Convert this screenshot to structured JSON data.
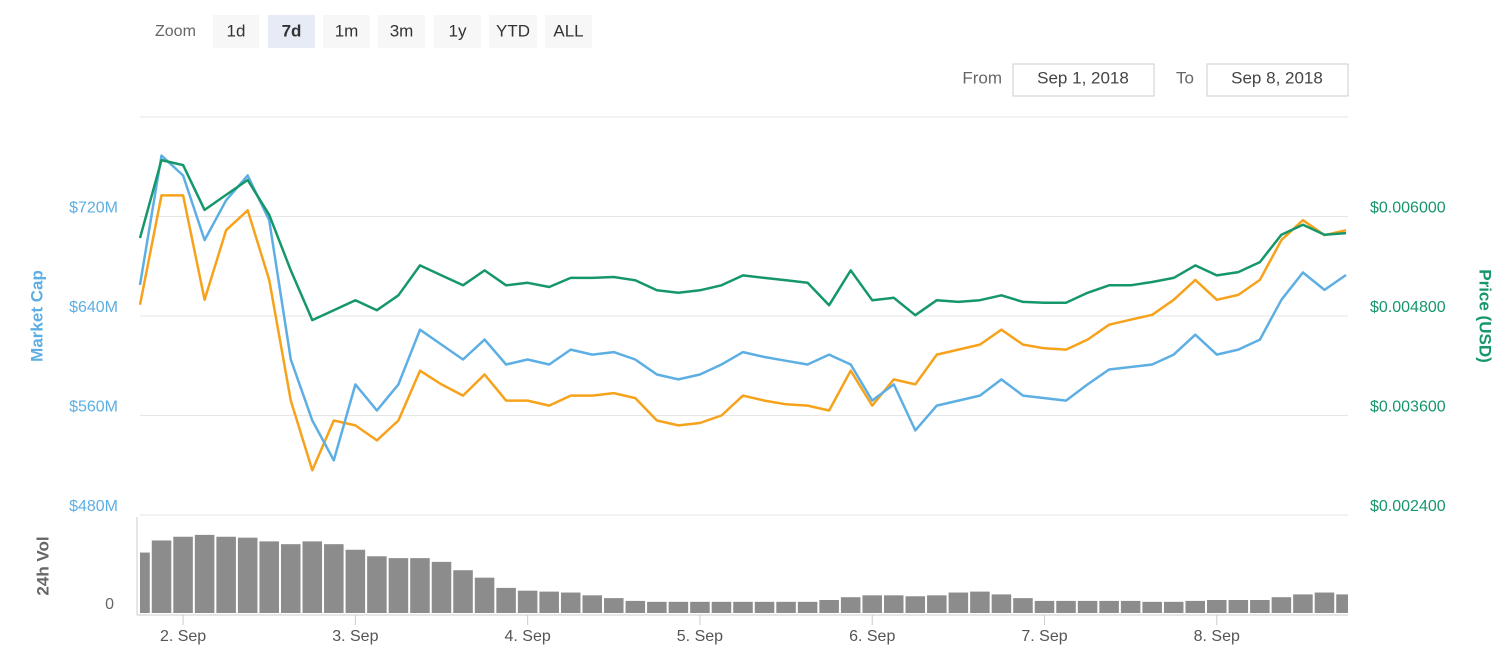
{
  "ui": {
    "zoom": {
      "label": "Zoom",
      "buttons": [
        "1d",
        "7d",
        "1m",
        "3m",
        "1y",
        "YTD",
        "ALL"
      ],
      "selected": 1
    },
    "range": {
      "from_label": "From",
      "from": "Sep 1, 2018",
      "to_label": "To",
      "to": "Sep 8, 2018"
    }
  },
  "chart_data": [
    {
      "type": "line",
      "ylabel": "Market Cap",
      "y2label": "Price (USD)",
      "grid": true,
      "x": [
        1.75,
        1.875,
        2,
        2.125,
        2.25,
        2.375,
        2.5,
        2.625,
        2.75,
        2.875,
        3,
        3.125,
        3.25,
        3.375,
        3.5,
        3.625,
        3.75,
        3.875,
        4,
        4.125,
        4.25,
        4.375,
        4.5,
        4.625,
        4.75,
        4.875,
        5,
        5.125,
        5.25,
        5.375,
        5.5,
        5.625,
        5.75,
        5.875,
        6,
        6.125,
        6.25,
        6.375,
        6.5,
        6.625,
        6.75,
        6.875,
        7,
        7.125,
        7.25,
        7.375,
        7.5,
        7.625,
        7.75,
        7.875,
        8,
        8.125,
        8.25,
        8.375,
        8.5,
        8.625,
        8.75
      ],
      "xlim": [
        1.75,
        8.75
      ],
      "ylim": [
        480,
        800
      ],
      "yticks": [
        {
          "value": 480,
          "label": "$480M"
        },
        {
          "value": 560,
          "label": "$560M"
        },
        {
          "value": 640,
          "label": "$640M"
        },
        {
          "value": 720,
          "label": "$720M"
        }
      ],
      "y2lim": [
        0.0024,
        0.0072
      ],
      "y2ticks": [
        {
          "value": 0.0024,
          "label": "$0.002400"
        },
        {
          "value": 0.0036,
          "label": "$0.003600"
        },
        {
          "value": 0.0048,
          "label": "$0.004800"
        },
        {
          "value": 0.006,
          "label": "$0.006000"
        }
      ],
      "series": [
        {
          "color": "#f7a21b",
          "axis": "y",
          "values": [
            649,
            737,
            737,
            653,
            709,
            725,
            669,
            572,
            516,
            556,
            552,
            540,
            556,
            596,
            585,
            576,
            593,
            572,
            572,
            568,
            576,
            576,
            578,
            574,
            556,
            552,
            554,
            560,
            576,
            572,
            569,
            568,
            564,
            596,
            568,
            589,
            585,
            609,
            613,
            617,
            629,
            617,
            614,
            613,
            621,
            633,
            637,
            641,
            653,
            669,
            653,
            657,
            669,
            701,
            717,
            705,
            709
          ]
        },
        {
          "color": "#5dafe3",
          "axis": "y",
          "values": [
            665,
            769,
            753,
            701,
            733,
            753,
            717,
            605,
            556,
            524,
            585,
            564,
            585,
            629,
            617,
            605,
            621,
            601,
            605,
            601,
            613,
            609,
            611,
            605,
            593,
            589,
            593,
            601,
            611,
            607,
            604,
            601,
            609,
            601,
            572,
            585,
            548,
            568,
            572,
            576,
            589,
            576,
            574,
            572,
            585,
            597,
            599,
            601,
            609,
            625,
            609,
            613,
            621,
            653,
            675,
            661,
            673
          ]
        },
        {
          "color": "#16976a",
          "axis": "y2",
          "values": [
            0.00574,
            0.00668,
            0.00662,
            0.00608,
            0.00626,
            0.00644,
            0.00602,
            0.00535,
            0.00475,
            0.00487,
            0.00499,
            0.00487,
            0.00505,
            0.00541,
            0.00529,
            0.00517,
            0.00535,
            0.00517,
            0.0052,
            0.00515,
            0.00526,
            0.00526,
            0.00527,
            0.00523,
            0.00511,
            0.00508,
            0.00511,
            0.00517,
            0.00529,
            0.00526,
            0.00523,
            0.0052,
            0.00493,
            0.00535,
            0.00499,
            0.00502,
            0.00481,
            0.00499,
            0.00497,
            0.00499,
            0.00505,
            0.00497,
            0.00496,
            0.00496,
            0.00508,
            0.00517,
            0.00517,
            0.00521,
            0.00526,
            0.00541,
            0.00529,
            0.00533,
            0.00545,
            0.00578,
            0.0059,
            0.00578,
            0.0058
          ]
        }
      ]
    },
    {
      "type": "bar",
      "ylabel": "24h Vol",
      "color": "#8c8c8c",
      "x": [
        1.75,
        1.875,
        2,
        2.125,
        2.25,
        2.375,
        2.5,
        2.625,
        2.75,
        2.875,
        3,
        3.125,
        3.25,
        3.375,
        3.5,
        3.625,
        3.75,
        3.875,
        4,
        4.125,
        4.25,
        4.375,
        4.5,
        4.625,
        4.75,
        4.875,
        5,
        5.125,
        5.25,
        5.375,
        5.5,
        5.625,
        5.75,
        5.875,
        6,
        6.125,
        6.25,
        6.375,
        6.5,
        6.625,
        6.75,
        6.875,
        7,
        7.125,
        7.25,
        7.375,
        7.5,
        7.625,
        7.75,
        7.875,
        8,
        8.125,
        8.25,
        8.375,
        8.5,
        8.625,
        8.75
      ],
      "values": [
        65,
        78,
        82,
        84,
        82,
        81,
        77,
        74,
        77,
        74,
        68,
        61,
        59,
        59,
        55,
        46,
        38,
        27,
        24,
        23,
        22,
        19,
        16,
        13,
        12,
        12,
        12,
        12,
        12,
        12,
        12,
        12,
        14,
        17,
        19,
        19,
        18,
        19,
        22,
        23,
        20,
        16,
        13,
        13,
        13,
        13,
        13,
        12,
        12,
        13,
        14,
        14,
        14,
        17,
        20,
        22,
        20
      ],
      "xlim": [
        1.75,
        8.75
      ],
      "xticks": [
        {
          "value": 2,
          "label": "2. Sep"
        },
        {
          "value": 3,
          "label": "3. Sep"
        },
        {
          "value": 4,
          "label": "4. Sep"
        },
        {
          "value": 5,
          "label": "5. Sep"
        },
        {
          "value": 6,
          "label": "6. Sep"
        },
        {
          "value": 7,
          "label": "7. Sep"
        },
        {
          "value": 8,
          "label": "8. Sep"
        }
      ],
      "ylim": [
        0,
        100
      ],
      "yticks": [
        0
      ]
    }
  ]
}
